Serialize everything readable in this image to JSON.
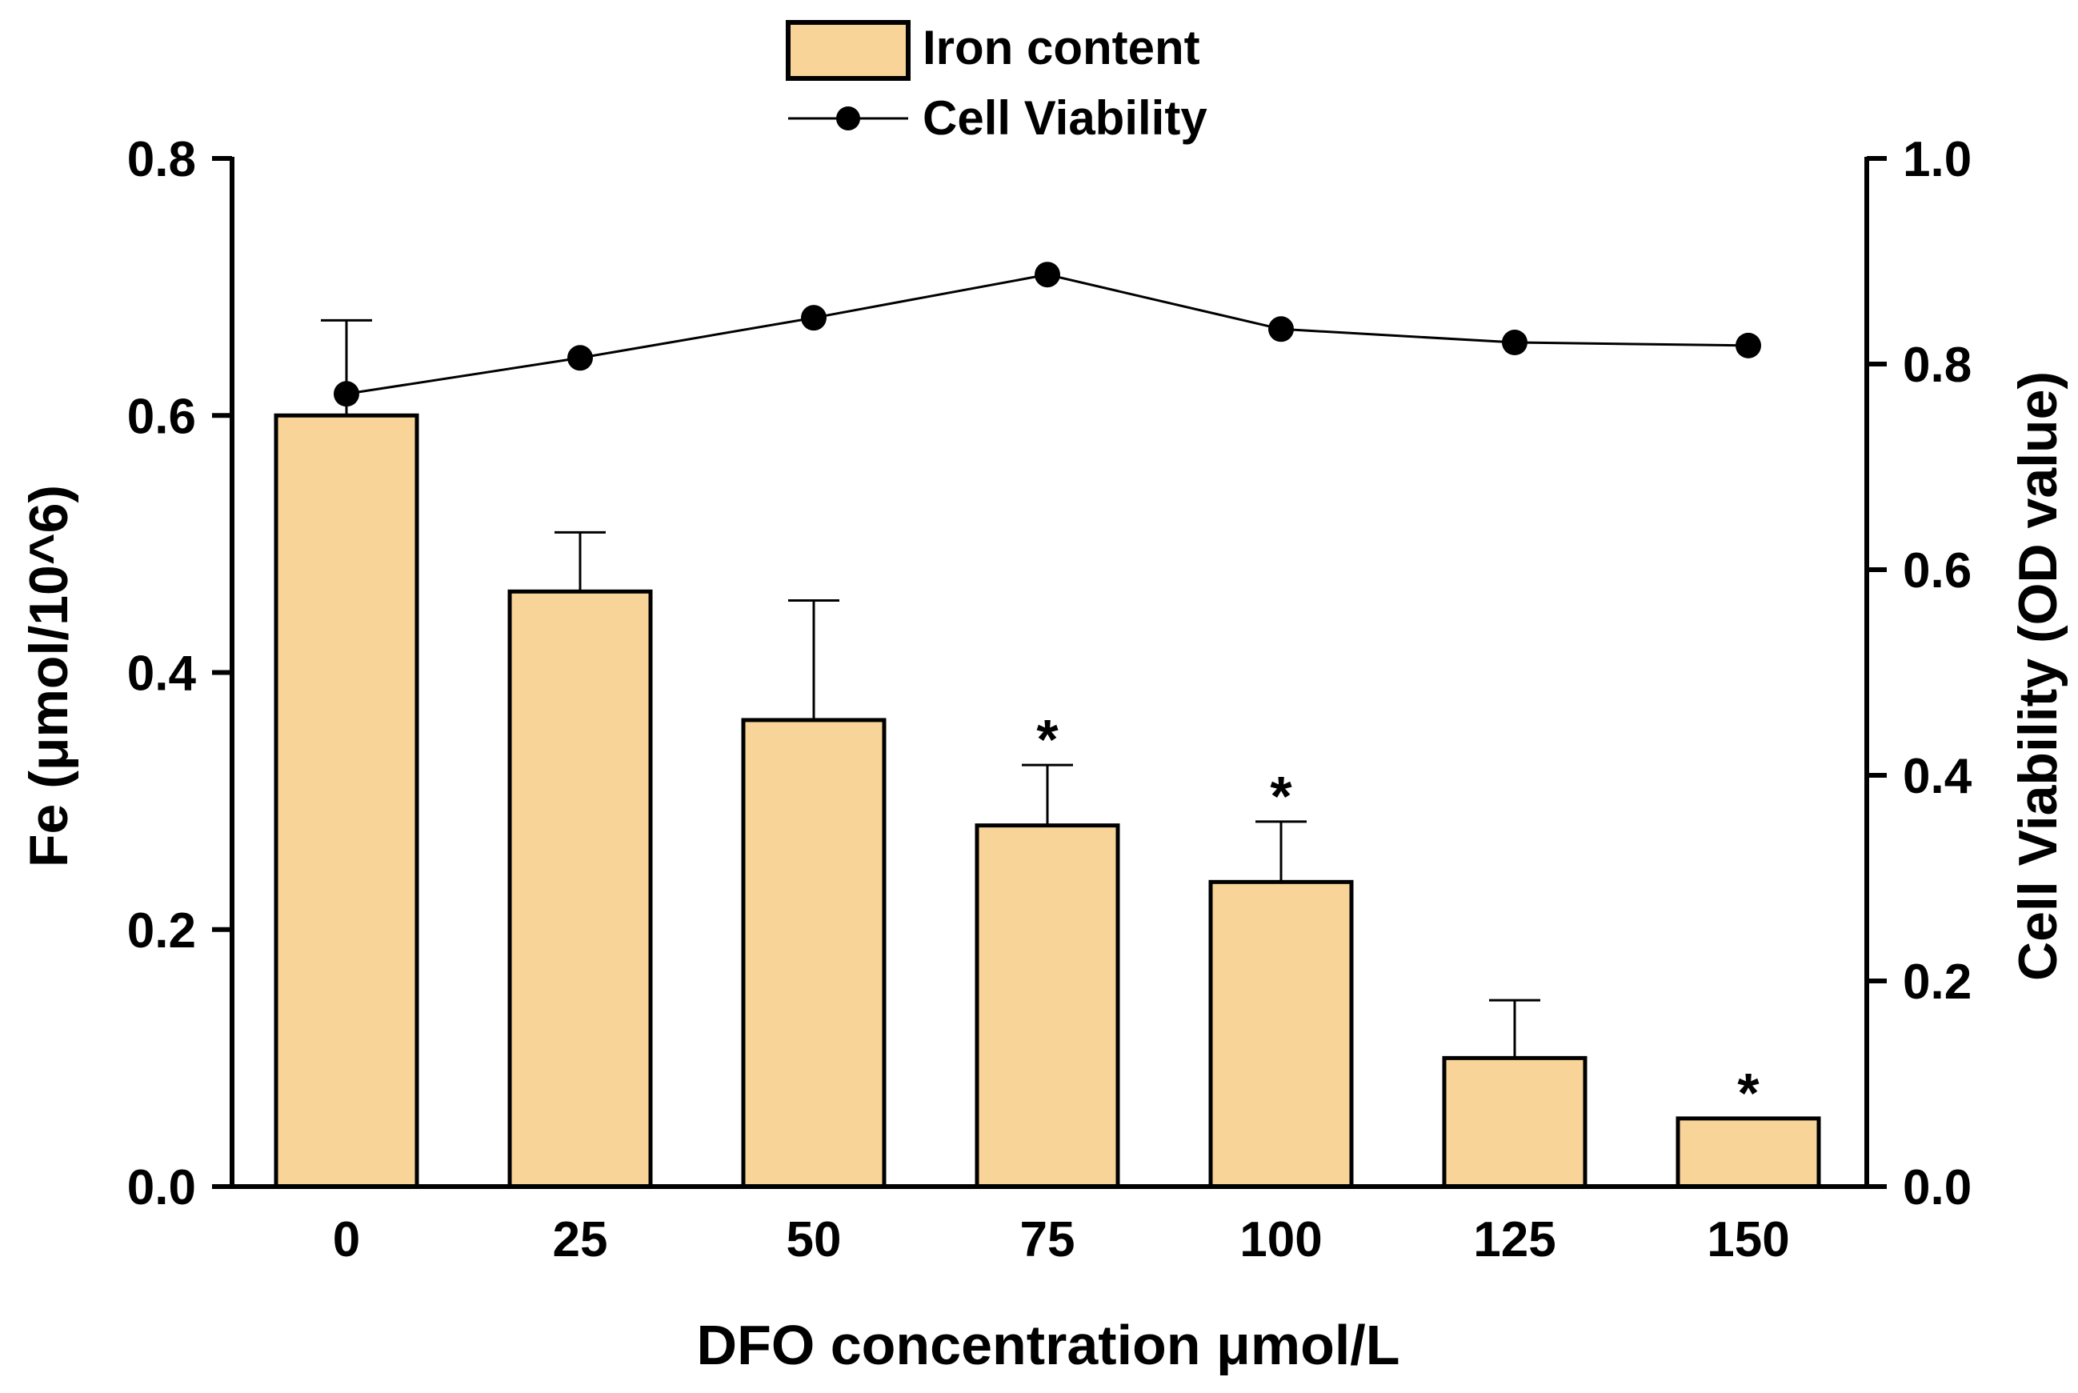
{
  "chart_data": {
    "type": "bar",
    "categories": [
      "0",
      "25",
      "50",
      "75",
      "100",
      "125",
      "150"
    ],
    "xlabel": "DFO concentration μmol/L",
    "ylabel": "Fe (μmol/10^6)",
    "y2label": "Cell Viability (OD value)",
    "ylim": [
      0,
      0.8
    ],
    "y2lim": [
      0,
      1.0
    ],
    "yticks": [
      "0.0",
      "0.2",
      "0.4",
      "0.6",
      "0.8"
    ],
    "y2ticks": [
      "0.0",
      "0.2",
      "0.4",
      "0.6",
      "0.8",
      "1.0"
    ],
    "legend_position": "top-center",
    "series": [
      {
        "name": "Iron content",
        "type": "bar",
        "axis": "left",
        "values": [
          0.6,
          0.463,
          0.363,
          0.281,
          0.237,
          0.1,
          0.053
        ],
        "errors": [
          0.074,
          0.046,
          0.093,
          0.047,
          0.047,
          0.045,
          0
        ],
        "significance": [
          "",
          "",
          "",
          "*",
          "*",
          "",
          "*"
        ]
      },
      {
        "name": "Cell Viability",
        "type": "line",
        "axis": "right",
        "values": [
          0.771,
          0.806,
          0.845,
          0.887,
          0.834,
          0.821,
          0.818
        ]
      }
    ],
    "colors": {
      "bar_fill": "#F8D498",
      "bar_stroke": "#000000",
      "line": "#000000",
      "marker": "#000000"
    }
  }
}
